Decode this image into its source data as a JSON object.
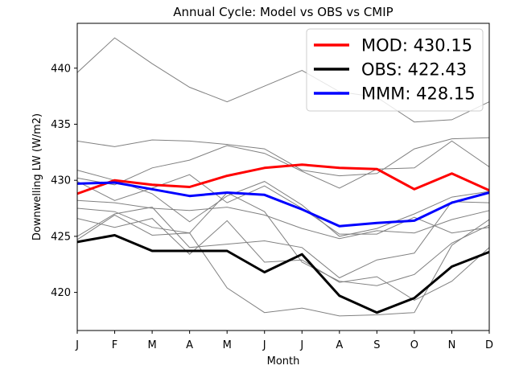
{
  "chart_data": {
    "type": "line",
    "title": "Annual Cycle: Model vs OBS vs CMIP",
    "xlabel": "Month",
    "ylabel": "Downwelling LW (W/m2)",
    "categories": [
      "J",
      "F",
      "M",
      "A",
      "M",
      "J",
      "J",
      "A",
      "S",
      "O",
      "N",
      "D"
    ],
    "ylim": [
      416.6,
      444.0
    ],
    "yticks": [
      420,
      425,
      430,
      435,
      440
    ],
    "grid": false,
    "legend_position": "top-right",
    "background_series": [
      {
        "color": "#808080",
        "values": [
          439.6,
          442.7,
          440.4,
          438.3,
          437.0,
          438.4,
          439.8,
          437.9,
          437.4,
          435.2,
          435.4,
          437.0
        ]
      },
      {
        "color": "#808080",
        "values": [
          433.5,
          433.0,
          433.6,
          433.5,
          433.2,
          432.8,
          430.9,
          430.4,
          430.6,
          432.8,
          433.7,
          433.8
        ]
      },
      {
        "color": "#808080",
        "values": [
          430.9,
          430.0,
          428.8,
          426.3,
          428.6,
          429.9,
          427.8,
          425.0,
          425.7,
          427.0,
          428.5,
          429.0
        ]
      },
      {
        "color": "#808080",
        "values": [
          430.2,
          429.6,
          431.1,
          431.8,
          433.1,
          432.4,
          430.8,
          429.3,
          431.0,
          431.1,
          433.5,
          431.2
        ]
      },
      {
        "color": "#808080",
        "values": [
          429.9,
          428.2,
          429.3,
          430.5,
          428.0,
          429.5,
          427.5,
          425.2,
          425.2,
          426.7,
          425.3,
          425.8
        ]
      },
      {
        "color": "#808080",
        "values": [
          428.2,
          428.0,
          427.5,
          427.3,
          427.6,
          426.9,
          425.7,
          424.8,
          425.5,
          425.3,
          426.5,
          427.3
        ]
      },
      {
        "color": "#808080",
        "values": [
          427.5,
          427.2,
          425.8,
          425.3,
          428.9,
          427.2,
          422.7,
          421.0,
          420.6,
          421.6,
          424.4,
          426.0
        ]
      },
      {
        "color": "#808080",
        "values": [
          426.6,
          425.8,
          426.6,
          423.4,
          426.4,
          422.7,
          422.9,
          420.9,
          421.4,
          419.3,
          421.0,
          424.0
        ]
      },
      {
        "color": "#808080",
        "values": [
          424.7,
          426.9,
          425.1,
          425.3,
          420.4,
          418.2,
          418.6,
          417.9,
          418.0,
          418.2,
          424.2,
          426.5
        ]
      },
      {
        "color": "#808080",
        "values": [
          425.0,
          427.0,
          427.6,
          424.0,
          424.3,
          424.6,
          424.0,
          421.3,
          422.9,
          423.5,
          428.1,
          428.0
        ]
      }
    ],
    "series": [
      {
        "name": "MOD: 430.15",
        "color": "#ff0000",
        "values": [
          428.8,
          430.0,
          429.6,
          429.4,
          430.4,
          431.1,
          431.4,
          431.1,
          431.0,
          429.2,
          430.6,
          429.1
        ]
      },
      {
        "name": "OBS: 422.43",
        "color": "#000000",
        "values": [
          424.5,
          425.1,
          423.7,
          423.7,
          423.7,
          421.8,
          423.4,
          419.7,
          418.2,
          419.5,
          422.3,
          423.6
        ]
      },
      {
        "name": "MMM: 428.15",
        "color": "#0000ff",
        "values": [
          429.7,
          429.8,
          429.2,
          428.6,
          428.9,
          428.7,
          427.4,
          425.9,
          426.2,
          426.4,
          428.0,
          428.9
        ]
      }
    ]
  }
}
